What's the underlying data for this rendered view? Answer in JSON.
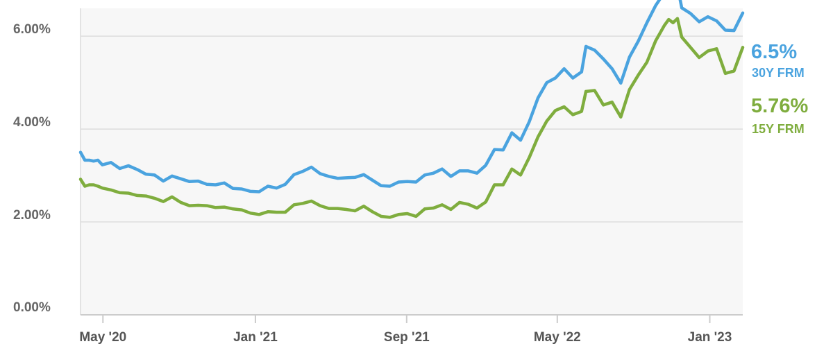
{
  "chart_data": {
    "type": "line",
    "title": "",
    "xlabel": "",
    "ylabel": "",
    "ylim": [
      0,
      6.6
    ],
    "y_ticks": [
      {
        "value": 0,
        "label": "0.00%"
      },
      {
        "value": 2,
        "label": "2.00%"
      },
      {
        "value": 4,
        "label": "4.00%"
      },
      {
        "value": 6,
        "label": "6.00%"
      }
    ],
    "xlim": [
      "2020-03-26",
      "2023-02-23"
    ],
    "x_ticks": [
      {
        "date": "2020-05-01",
        "label": "May '20"
      },
      {
        "date": "2021-01-01",
        "label": "Jan '21"
      },
      {
        "date": "2021-09-01",
        "label": "Sep '21"
      },
      {
        "date": "2022-05-01",
        "label": "May '22"
      },
      {
        "date": "2023-01-01",
        "label": "Jan '23"
      }
    ],
    "grid": "horizontal",
    "shaded_background": true,
    "series": [
      {
        "name": "30Y FRM",
        "end_value_label": "6.5%",
        "color": "#4aa3df",
        "points": [
          [
            "2020-03-26",
            3.5
          ],
          [
            "2020-04-02",
            3.33
          ],
          [
            "2020-04-09",
            3.33
          ],
          [
            "2020-04-16",
            3.31
          ],
          [
            "2020-04-23",
            3.33
          ],
          [
            "2020-04-30",
            3.23
          ],
          [
            "2020-05-14",
            3.28
          ],
          [
            "2020-05-28",
            3.15
          ],
          [
            "2020-06-11",
            3.21
          ],
          [
            "2020-06-25",
            3.13
          ],
          [
            "2020-07-09",
            3.03
          ],
          [
            "2020-07-23",
            3.01
          ],
          [
            "2020-08-06",
            2.88
          ],
          [
            "2020-08-20",
            2.99
          ],
          [
            "2020-09-03",
            2.93
          ],
          [
            "2020-09-17",
            2.87
          ],
          [
            "2020-10-01",
            2.88
          ],
          [
            "2020-10-15",
            2.81
          ],
          [
            "2020-10-29",
            2.8
          ],
          [
            "2020-11-12",
            2.84
          ],
          [
            "2020-11-26",
            2.72
          ],
          [
            "2020-12-10",
            2.71
          ],
          [
            "2020-12-24",
            2.66
          ],
          [
            "2021-01-07",
            2.65
          ],
          [
            "2021-01-21",
            2.77
          ],
          [
            "2021-02-04",
            2.73
          ],
          [
            "2021-02-18",
            2.81
          ],
          [
            "2021-03-04",
            3.02
          ],
          [
            "2021-03-18",
            3.09
          ],
          [
            "2021-04-01",
            3.18
          ],
          [
            "2021-04-15",
            3.04
          ],
          [
            "2021-04-29",
            2.98
          ],
          [
            "2021-05-13",
            2.94
          ],
          [
            "2021-05-27",
            2.95
          ],
          [
            "2021-06-10",
            2.96
          ],
          [
            "2021-06-24",
            3.02
          ],
          [
            "2021-07-08",
            2.9
          ],
          [
            "2021-07-22",
            2.78
          ],
          [
            "2021-08-05",
            2.77
          ],
          [
            "2021-08-19",
            2.86
          ],
          [
            "2021-09-02",
            2.87
          ],
          [
            "2021-09-16",
            2.86
          ],
          [
            "2021-09-30",
            3.01
          ],
          [
            "2021-10-14",
            3.05
          ],
          [
            "2021-10-28",
            3.14
          ],
          [
            "2021-11-11",
            2.98
          ],
          [
            "2021-11-25",
            3.1
          ],
          [
            "2021-12-09",
            3.1
          ],
          [
            "2021-12-23",
            3.05
          ],
          [
            "2022-01-06",
            3.22
          ],
          [
            "2022-01-20",
            3.56
          ],
          [
            "2022-02-03",
            3.55
          ],
          [
            "2022-02-17",
            3.92
          ],
          [
            "2022-03-03",
            3.76
          ],
          [
            "2022-03-17",
            4.16
          ],
          [
            "2022-03-31",
            4.67
          ],
          [
            "2022-04-14",
            5.0
          ],
          [
            "2022-04-28",
            5.1
          ],
          [
            "2022-05-12",
            5.3
          ],
          [
            "2022-05-26",
            5.1
          ],
          [
            "2022-06-09",
            5.23
          ],
          [
            "2022-06-16",
            5.78
          ],
          [
            "2022-06-30",
            5.7
          ],
          [
            "2022-07-14",
            5.51
          ],
          [
            "2022-07-28",
            5.3
          ],
          [
            "2022-08-11",
            4.99
          ],
          [
            "2022-08-25",
            5.55
          ],
          [
            "2022-09-08",
            5.89
          ],
          [
            "2022-09-22",
            6.29
          ],
          [
            "2022-10-06",
            6.66
          ],
          [
            "2022-10-20",
            6.94
          ],
          [
            "2022-10-27",
            7.08
          ],
          [
            "2022-11-03",
            6.95
          ],
          [
            "2022-11-10",
            7.08
          ],
          [
            "2022-11-17",
            6.61
          ],
          [
            "2022-12-01",
            6.49
          ],
          [
            "2022-12-15",
            6.31
          ],
          [
            "2022-12-29",
            6.42
          ],
          [
            "2023-01-12",
            6.33
          ],
          [
            "2023-01-26",
            6.13
          ],
          [
            "2023-02-09",
            6.12
          ],
          [
            "2023-02-23",
            6.5
          ]
        ]
      },
      {
        "name": "15Y FRM",
        "end_value_label": "5.76%",
        "color": "#7fad3e",
        "points": [
          [
            "2020-03-26",
            2.92
          ],
          [
            "2020-04-02",
            2.77
          ],
          [
            "2020-04-09",
            2.8
          ],
          [
            "2020-04-16",
            2.8
          ],
          [
            "2020-04-23",
            2.77
          ],
          [
            "2020-04-30",
            2.73
          ],
          [
            "2020-05-14",
            2.69
          ],
          [
            "2020-05-28",
            2.63
          ],
          [
            "2020-06-11",
            2.62
          ],
          [
            "2020-06-25",
            2.57
          ],
          [
            "2020-07-09",
            2.56
          ],
          [
            "2020-07-23",
            2.51
          ],
          [
            "2020-08-06",
            2.44
          ],
          [
            "2020-08-20",
            2.54
          ],
          [
            "2020-09-03",
            2.42
          ],
          [
            "2020-09-17",
            2.35
          ],
          [
            "2020-10-01",
            2.36
          ],
          [
            "2020-10-15",
            2.35
          ],
          [
            "2020-10-29",
            2.31
          ],
          [
            "2020-11-12",
            2.32
          ],
          [
            "2020-11-26",
            2.28
          ],
          [
            "2020-12-10",
            2.26
          ],
          [
            "2020-12-24",
            2.19
          ],
          [
            "2021-01-07",
            2.16
          ],
          [
            "2021-01-21",
            2.22
          ],
          [
            "2021-02-04",
            2.21
          ],
          [
            "2021-02-18",
            2.21
          ],
          [
            "2021-03-04",
            2.37
          ],
          [
            "2021-03-18",
            2.4
          ],
          [
            "2021-04-01",
            2.45
          ],
          [
            "2021-04-15",
            2.35
          ],
          [
            "2021-04-29",
            2.29
          ],
          [
            "2021-05-13",
            2.29
          ],
          [
            "2021-05-27",
            2.27
          ],
          [
            "2021-06-10",
            2.24
          ],
          [
            "2021-06-24",
            2.34
          ],
          [
            "2021-07-08",
            2.22
          ],
          [
            "2021-07-22",
            2.12
          ],
          [
            "2021-08-05",
            2.1
          ],
          [
            "2021-08-19",
            2.16
          ],
          [
            "2021-09-02",
            2.18
          ],
          [
            "2021-09-16",
            2.12
          ],
          [
            "2021-09-30",
            2.28
          ],
          [
            "2021-10-14",
            2.3
          ],
          [
            "2021-10-28",
            2.37
          ],
          [
            "2021-11-11",
            2.27
          ],
          [
            "2021-11-25",
            2.42
          ],
          [
            "2021-12-09",
            2.38
          ],
          [
            "2021-12-23",
            2.3
          ],
          [
            "2022-01-06",
            2.43
          ],
          [
            "2022-01-20",
            2.8
          ],
          [
            "2022-02-03",
            2.8
          ],
          [
            "2022-02-17",
            3.14
          ],
          [
            "2022-03-03",
            3.01
          ],
          [
            "2022-03-17",
            3.39
          ],
          [
            "2022-03-31",
            3.83
          ],
          [
            "2022-04-14",
            4.17
          ],
          [
            "2022-04-28",
            4.4
          ],
          [
            "2022-05-12",
            4.48
          ],
          [
            "2022-05-26",
            4.31
          ],
          [
            "2022-06-09",
            4.38
          ],
          [
            "2022-06-16",
            4.81
          ],
          [
            "2022-06-30",
            4.83
          ],
          [
            "2022-07-14",
            4.52
          ],
          [
            "2022-07-28",
            4.58
          ],
          [
            "2022-08-11",
            4.26
          ],
          [
            "2022-08-25",
            4.85
          ],
          [
            "2022-09-08",
            5.16
          ],
          [
            "2022-09-22",
            5.44
          ],
          [
            "2022-10-06",
            5.9
          ],
          [
            "2022-10-20",
            6.23
          ],
          [
            "2022-10-27",
            6.36
          ],
          [
            "2022-11-03",
            6.29
          ],
          [
            "2022-11-10",
            6.38
          ],
          [
            "2022-11-17",
            5.98
          ],
          [
            "2022-12-01",
            5.76
          ],
          [
            "2022-12-15",
            5.54
          ],
          [
            "2022-12-29",
            5.68
          ],
          [
            "2023-01-12",
            5.73
          ],
          [
            "2023-01-26",
            5.2
          ],
          [
            "2023-02-09",
            5.25
          ],
          [
            "2023-02-23",
            5.76
          ]
        ]
      }
    ]
  }
}
